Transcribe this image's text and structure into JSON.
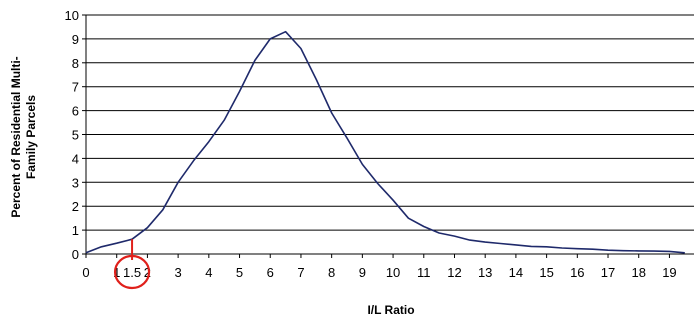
{
  "chart_data": {
    "type": "line",
    "xlabel": "I/L Ratio",
    "ylabel_lines": [
      "Percent of Residential Multi-",
      "Family Parcels"
    ],
    "xlim": [
      0,
      19.8
    ],
    "ylim": [
      0,
      10
    ],
    "x_ticks": [
      "0",
      "1",
      "1.5",
      "2",
      "3",
      "4",
      "5",
      "6",
      "7",
      "8",
      "9",
      "10",
      "11",
      "12",
      "13",
      "14",
      "15",
      "16",
      "17",
      "18",
      "19"
    ],
    "x_tick_values": [
      0,
      1,
      1.5,
      2,
      3,
      4,
      5,
      6,
      7,
      8,
      9,
      10,
      11,
      12,
      13,
      14,
      15,
      16,
      17,
      18,
      19
    ],
    "y_ticks": [
      "0",
      "1",
      "2",
      "3",
      "4",
      "5",
      "6",
      "7",
      "8",
      "9",
      "10"
    ],
    "y_tick_values": [
      0,
      1,
      2,
      3,
      4,
      5,
      6,
      7,
      8,
      9,
      10
    ],
    "grid": "horizontal",
    "highlight": {
      "x_value": 1.5,
      "y_value": 0.62,
      "color": "#e0201b"
    },
    "line_color": "#1f2a6b",
    "series": [
      {
        "x": [
          0,
          0.5,
          1,
          1.5,
          2,
          2.5,
          3,
          3.5,
          4,
          4.5,
          5,
          5.5,
          6,
          6.5,
          7,
          7.5,
          8,
          8.5,
          9,
          9.5,
          10,
          10.5,
          11,
          11.5,
          12,
          12.5,
          13,
          13.5,
          14,
          14.5,
          15,
          15.5,
          16,
          16.5,
          17,
          17.5,
          18,
          18.5,
          19,
          19.5
        ],
        "values": [
          0.05,
          0.3,
          0.45,
          0.62,
          1.1,
          1.85,
          3.0,
          3.9,
          4.7,
          5.6,
          6.8,
          8.1,
          9.0,
          9.3,
          8.6,
          7.3,
          5.9,
          4.85,
          3.75,
          2.95,
          2.25,
          1.5,
          1.15,
          0.88,
          0.75,
          0.58,
          0.5,
          0.44,
          0.38,
          0.32,
          0.3,
          0.25,
          0.22,
          0.2,
          0.16,
          0.14,
          0.13,
          0.12,
          0.11,
          0.05
        ]
      }
    ]
  }
}
